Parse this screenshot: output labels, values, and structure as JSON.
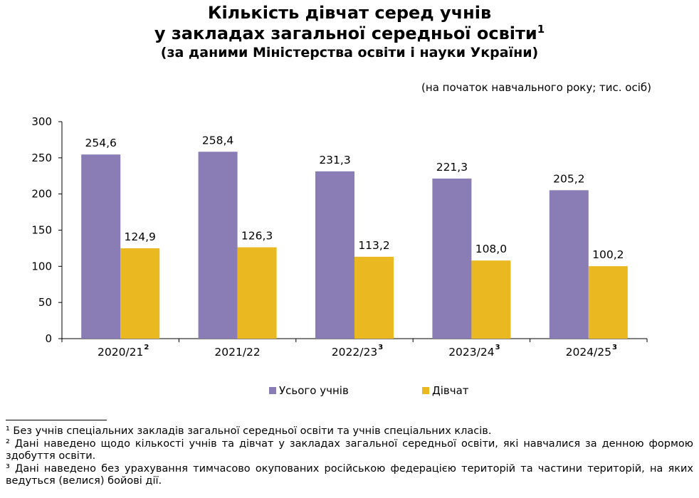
{
  "title": {
    "line1": "Кількість дівчат серед учнів",
    "line2": "у закладах загальної середньої освіти",
    "line2_sup": "1",
    "line3": "(за даними Міністерства освіти і науки України)"
  },
  "units_note": "(на початок навчального року; тис. осіб)",
  "chart_data": {
    "type": "bar",
    "categories": [
      "2020/21",
      "2021/22",
      "2022/23",
      "2023/24",
      "2024/25"
    ],
    "category_superscripts": [
      "2",
      "",
      "3",
      "3",
      "3"
    ],
    "series": [
      {
        "name": "Усього учнів",
        "color": "#8a7db5",
        "values": [
          254.6,
          258.4,
          231.3,
          221.3,
          205.2
        ],
        "labels": [
          "254,6",
          "258,4",
          "231,3",
          "221,3",
          "205,2"
        ]
      },
      {
        "name": "Дівчат",
        "color": "#eab820",
        "values": [
          124.9,
          126.3,
          113.2,
          108.0,
          100.2
        ],
        "labels": [
          "124,9",
          "126,3",
          "113,2",
          "108,0",
          "100,2"
        ]
      }
    ],
    "ylim": [
      0,
      300
    ],
    "yticks": [
      0,
      50,
      100,
      150,
      200,
      250,
      300
    ],
    "grid": false,
    "legend_position": "bottom"
  },
  "footnotes": [
    "¹ Без учнів спеціальних закладів загальної середньої освіти та учнів спеціальних класів.",
    "² Дані наведено щодо кількості учнів та дівчат у закладах загальної середньої освіти, які навчалися за денною формою здобуття освіти.",
    "³ Дані наведено без урахування тимчасово окупованих російською федерацією територій та частини територій, на яких ведуться (велися) бойові дії."
  ]
}
